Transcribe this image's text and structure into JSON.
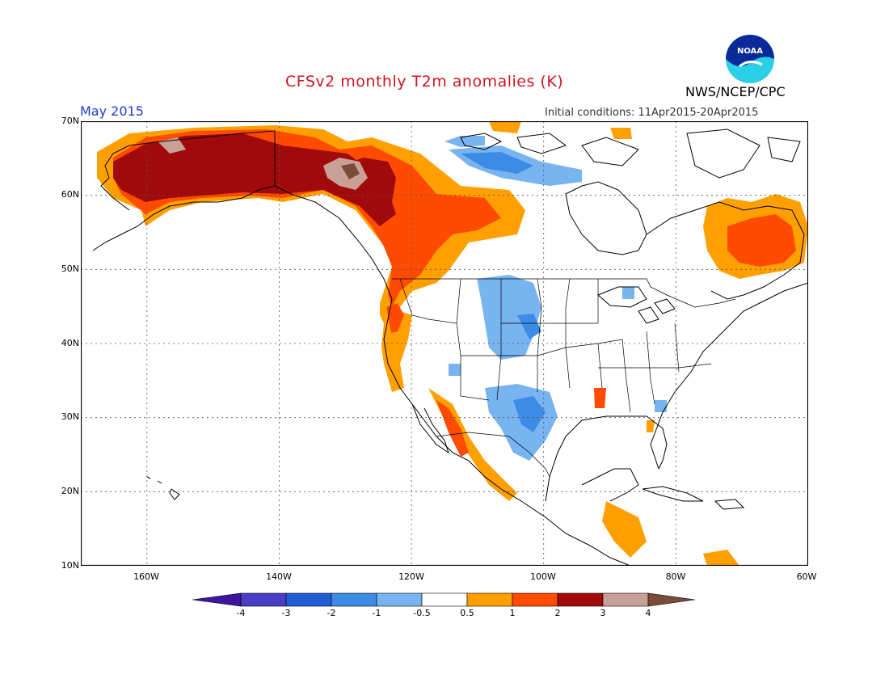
{
  "title": "CFSv2 monthly T2m anomalies (K)",
  "month": "May 2015",
  "initial_conditions": "Initial conditions: 11Apr2015-20Apr2015",
  "organization": "NWS/NCEP/CPC",
  "logo_text": "NOAA",
  "lat_labels": [
    "70N",
    "60N",
    "50N",
    "40N",
    "30N",
    "20N",
    "10N"
  ],
  "lon_labels": [
    "160W",
    "140W",
    "120W",
    "100W",
    "80W",
    "60W"
  ],
  "colorbar": {
    "labels": [
      "-4",
      "-3",
      "-2",
      "-1",
      "-0.5",
      "0.5",
      "1",
      "2",
      "3",
      "4"
    ],
    "colors": [
      "#3c14a0",
      "#4b3cc8",
      "#1e5fd2",
      "#3c8ce6",
      "#78b4f0",
      "#ffffff",
      "#ffa000",
      "#ff4b00",
      "#a00a0a",
      "#c8a096",
      "#7a4a3a"
    ]
  },
  "map_extent": {
    "lon_min": -170,
    "lon_max": -60,
    "lat_min": 10,
    "lat_max": 70
  }
}
